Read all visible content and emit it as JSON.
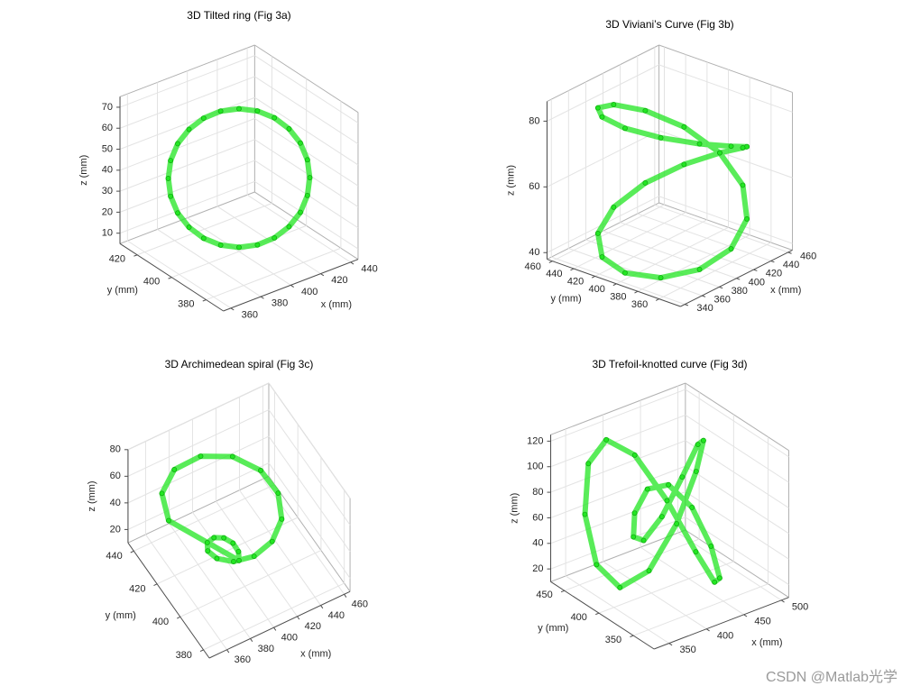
{
  "chart_data": [
    {
      "type": "scatter3d",
      "title": "3D Tilted ring (Fig 3a)",
      "xlabel": "x (mm)",
      "ylabel": "y (mm)",
      "zlabel": "z (mm)",
      "color": "#22e622",
      "x": [
        430,
        429,
        426,
        421.2,
        415,
        407.8,
        400,
        392.2,
        385,
        378.8,
        374,
        371,
        370,
        371,
        374,
        378.8,
        385,
        392.2,
        400,
        407.8,
        415,
        421.2,
        426,
        429
      ],
      "y": [
        385,
        385.5,
        387,
        389.4,
        392.5,
        396.1,
        400,
        403.9,
        407.5,
        410.6,
        413,
        414.5,
        415,
        414.5,
        413,
        410.6,
        407.5,
        403.9,
        400,
        396.1,
        392.5,
        389.4,
        387,
        385.5
      ],
      "z": [
        40,
        48.5,
        56.5,
        63.3,
        68.6,
        71.9,
        73,
        71.9,
        68.6,
        63.3,
        56.5,
        48.5,
        40,
        31.5,
        23.5,
        16.7,
        11.4,
        8.1,
        7,
        8.1,
        11.4,
        16.7,
        23.5,
        31.5
      ],
      "xlim": [
        355,
        445
      ],
      "ylim": [
        370,
        430
      ],
      "zlim": [
        5,
        75
      ],
      "xticks": [
        360,
        380,
        400,
        420,
        440
      ],
      "yticks": [
        380,
        400,
        420
      ],
      "zticks": [
        10,
        20,
        30,
        40,
        50,
        60,
        70
      ],
      "grid": true
    },
    {
      "type": "scatter3d",
      "title": "3D Viviani’s Curve (Fig 3b)",
      "xlabel": "x (mm)",
      "ylabel": "y (mm)",
      "zlabel": "z (mm)",
      "color": "#22e622",
      "x": [
        455,
        447.6,
        427.5,
        400,
        372.5,
        352.4,
        345,
        352.4,
        372.5,
        400,
        427.5,
        447.6,
        455,
        447.6,
        427.5,
        400,
        372.5,
        352.4,
        345,
        352.4,
        372.5,
        400,
        427.5,
        447.6
      ],
      "y": [
        400,
        427.5,
        447.6,
        455,
        447.6,
        427.5,
        400,
        372.5,
        352.4,
        345,
        352.4,
        372.5,
        400,
        427.5,
        447.6,
        455,
        447.6,
        427.5,
        400,
        372.5,
        352.4,
        345,
        352.4,
        372.5
      ],
      "z": [
        62,
        67.7,
        73,
        77.6,
        81.1,
        83.3,
        84,
        83.3,
        81.1,
        77.6,
        73,
        67.7,
        62,
        56.3,
        51,
        46.4,
        42.9,
        40.7,
        40,
        40.7,
        42.9,
        46.4,
        51,
        56.3
      ],
      "xlim": [
        335,
        465
      ],
      "ylim": [
        340,
        465
      ],
      "zlim": [
        38,
        86
      ],
      "xticks": [
        340,
        360,
        380,
        400,
        420,
        440,
        460
      ],
      "yticks": [
        360,
        380,
        400,
        420,
        440,
        460
      ],
      "zticks": [
        40,
        60,
        80
      ],
      "grid": true
    },
    {
      "type": "scatter3d",
      "title": "3D Archimedean spiral (Fig 3c)",
      "xlabel": "x (mm)",
      "ylabel": "y (mm)",
      "zlabel": "z (mm)",
      "color": "#22e622",
      "x": [
        405,
        406.8,
        405.3,
        400,
        392,
        383.6,
        378.3,
        378.9,
        386.4,
        400,
        416.4,
        430.8,
        438.3,
        435.6,
        422,
        400,
        375.3,
        354.8,
        345
      ],
      "y": [
        410,
        412.3,
        415.5,
        418,
        418.4,
        415.7,
        410,
        402.7,
        395.9,
        392,
        393,
        399.3,
        410,
        422.3,
        432.8,
        438,
        435.7,
        425.7,
        410
      ],
      "z": [
        15,
        18.1,
        21.1,
        24.2,
        27.2,
        30.3,
        33.3,
        36.4,
        39.4,
        42.5,
        45.6,
        48.6,
        51.7,
        54.7,
        57.8,
        60.8,
        63.9,
        66.9,
        70
      ],
      "xlim": [
        345,
        465
      ],
      "ylim": [
        375,
        445
      ],
      "zlim": [
        10,
        80
      ],
      "xticks": [
        360,
        380,
        400,
        420,
        440,
        460
      ],
      "yticks": [
        380,
        400,
        420,
        440
      ],
      "zticks": [
        20,
        40,
        60,
        80
      ],
      "grid": true
    },
    {
      "type": "scatter3d",
      "title": "3D Trefoil-knotted curve (Fig 3d)",
      "xlabel": "x (mm)",
      "ylabel": "y (mm)",
      "zlabel": "z (mm)",
      "color": "#22e622",
      "x": [
        420,
        451.5,
        475.8,
        487.7,
        485,
        469.2,
        445,
        419.2,
        398.4,
        387.7,
        389.2,
        401.5,
        420,
        438.5,
        450.8,
        452.3,
        441.7,
        420.9,
        395,
        370.9,
        355,
        352.3,
        364.2,
        388.5
      ],
      "y": [
        385,
        390.9,
        406.7,
        427.7,
        447.5,
        459.8,
        460,
        446.8,
        422.5,
        392.3,
        363.4,
        342.6,
        335,
        342.6,
        363.4,
        392.3,
        422.5,
        446.8,
        460,
        459.8,
        447.5,
        427.7,
        406.7,
        390.9
      ],
      "z": [
        65,
        96.8,
        110,
        96.8,
        65,
        33.2,
        20,
        33.2,
        65,
        96.8,
        110,
        96.8,
        65,
        33.2,
        20,
        33.2,
        65,
        96.8,
        110,
        96.8,
        65,
        33.2,
        20,
        33.2
      ],
      "xlim": [
        330,
        510
      ],
      "ylim": [
        320,
        470
      ],
      "zlim": [
        10,
        125
      ],
      "xticks": [
        350,
        400,
        450,
        500
      ],
      "yticks": [
        350,
        400,
        450
      ],
      "zticks": [
        20,
        40,
        60,
        80,
        100,
        120
      ],
      "grid": true
    }
  ],
  "watermark": "CSDN @Matlab光学"
}
